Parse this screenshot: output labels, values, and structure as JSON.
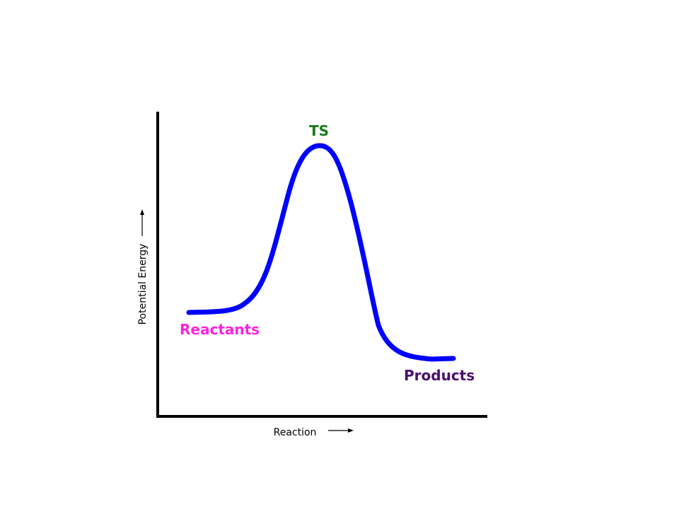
{
  "diagram": {
    "type": "reaction-energy-profile",
    "y_axis_label": "Potential Energy",
    "x_axis_label": "Reaction",
    "annotations": {
      "reactants": "Reactants",
      "transition_state": "TS",
      "products": "Products"
    },
    "colors": {
      "curve": "#0000ff",
      "axes": "#000000",
      "reactants": "#ff22dd",
      "transition_state": "#1b7a1b",
      "products": "#4b0f6e"
    }
  }
}
